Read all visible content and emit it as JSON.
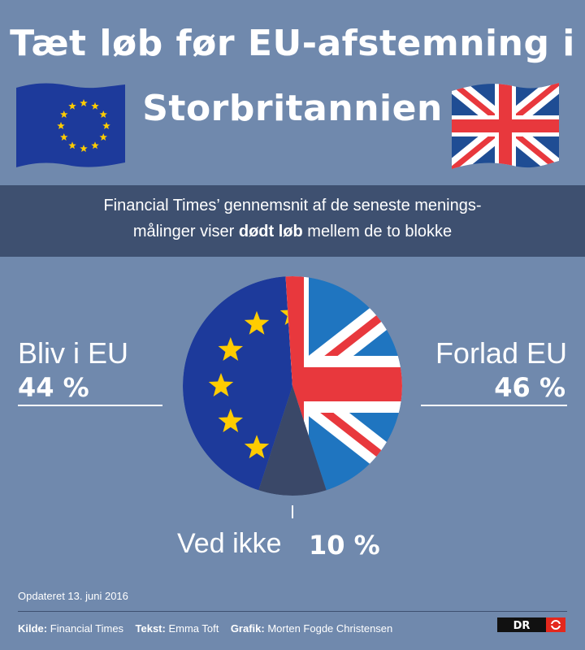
{
  "header": {
    "title_line1": "Tæt løb før EU-afstemning i",
    "title_line2": "Storbritannien"
  },
  "subtitle": {
    "line1": "Financial Times’ gennemsnit af de seneste menings-",
    "line2_before": "målinger viser ",
    "line2_bold": "dødt løb",
    "line2_after": " mellem de to blokke"
  },
  "chart_data": {
    "type": "pie",
    "categories": [
      "Bliv i EU",
      "Forlad EU",
      "Ved ikke"
    ],
    "values": [
      44,
      46,
      10
    ],
    "unit": "%",
    "labels": {
      "remain": {
        "label": "Bliv i EU",
        "value": "44 %"
      },
      "leave": {
        "label": "Forlad EU",
        "value": "46 %"
      },
      "undecided": {
        "label": "Ved ikke",
        "value": "10 %"
      }
    }
  },
  "colors": {
    "background": "#7089ad",
    "band": "#3e5070",
    "eu_blue": "#1d3a9b",
    "eu_star": "#ffcc00",
    "uk_blue": "#1f75c0",
    "uk_red": "#e8383d",
    "undecided": "#3a4868"
  },
  "footer": {
    "updated": "Opdateret 13. juni 2016",
    "source_label": "Kilde:",
    "source_value": "Financial Times",
    "text_label": "Tekst:",
    "text_value": "Emma Toft",
    "graphics_label": "Grafik:",
    "graphics_value": "Morten Fogde Christensen",
    "logo_text": "DR"
  }
}
